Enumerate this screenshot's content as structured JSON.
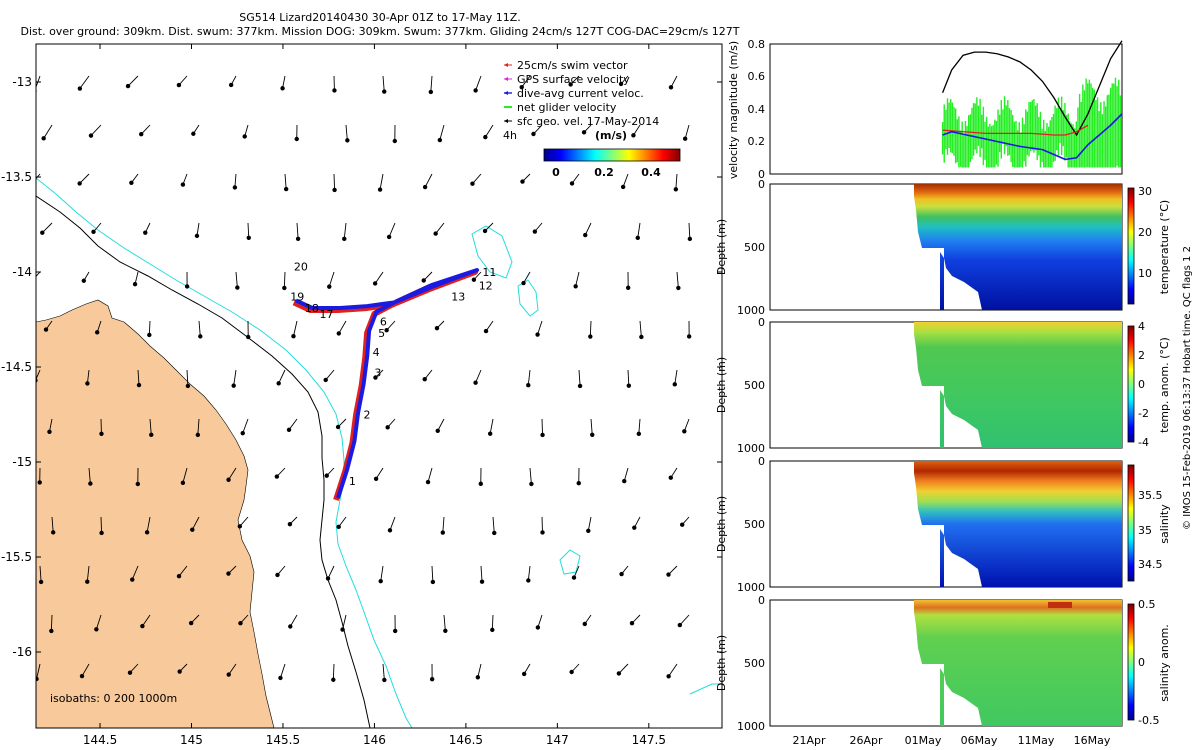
{
  "title": {
    "line1": "SG514 Lizard20140430 30-Apr 01Z to 17-May 11Z.",
    "line2": "Dist. over ground: 309km. Dist. swum: 377km. Mission DOG: 309km. Swum: 377km. Gliding 24cm/s 127T COG-DAC=29cm/s 127T"
  },
  "credit": "© IMOS 15-Feb-2019 06:13:37 Hobart time. QC flags 1  2",
  "colors": {
    "land": "#f8c99b",
    "isobath200": "#22dddd",
    "track_red": "#e02020",
    "track_blue": "#1a1ae0",
    "net_green": "#22ee22",
    "gps_magenta": "#e020e0",
    "line_black": "#000000",
    "frame": "#000000"
  },
  "chart_data": [
    {
      "type": "map",
      "name": "track-map",
      "xlim": [
        144.15,
        147.9
      ],
      "ylim": [
        -16.4,
        -12.8
      ],
      "xticks": [
        144.5,
        145,
        145.5,
        146,
        146.5,
        147,
        147.5
      ],
      "yticks": [
        -13,
        -13.5,
        -14,
        -14.5,
        -15,
        -15.5,
        -16
      ],
      "xtick_labels": [
        "144.5",
        "145",
        "145.5",
        "146",
        "146.5",
        "147",
        "147.5"
      ],
      "ytick_labels": [
        "-13",
        "-13.5",
        "-14",
        "-14.5",
        "-15",
        "-15.5",
        "-16"
      ],
      "legend": {
        "position": "top-right",
        "items": [
          {
            "label": "25cm/s swim vector",
            "color": "#e02020"
          },
          {
            "label": "GPS surface velocity",
            "color": "#e020e0"
          },
          {
            "label": "dive-avg current veloc.",
            "color": "#1a1ae0"
          },
          {
            "label": "net glider velocity",
            "color": "#22ee22"
          },
          {
            "label": "sfc geo. vel. 17-May-2014",
            "color": "#000000"
          }
        ],
        "age_label": "4h"
      },
      "colorbar": {
        "title": "(m/s)",
        "ticks": [
          "0",
          "0.2",
          "0.4"
        ],
        "range": [
          0,
          0.5
        ]
      },
      "isobaths_label": "isobaths: 0   200  1000m",
      "track": {
        "points": [
          [
            145.79,
            -15.2
          ],
          [
            145.84,
            -15.05
          ],
          [
            145.88,
            -14.9
          ],
          [
            145.9,
            -14.75
          ],
          [
            145.93,
            -14.6
          ],
          [
            145.95,
            -14.45
          ],
          [
            145.96,
            -14.32
          ],
          [
            146.0,
            -14.22
          ],
          [
            146.12,
            -14.16
          ],
          [
            146.3,
            -14.08
          ],
          [
            146.55,
            -14.0
          ],
          [
            146.3,
            -14.09
          ],
          [
            146.1,
            -14.17
          ],
          [
            145.95,
            -14.19
          ],
          [
            145.8,
            -14.2
          ],
          [
            145.65,
            -14.2
          ],
          [
            145.56,
            -14.16
          ]
        ],
        "day_labels": [
          {
            "label": "1",
            "lon": 145.86,
            "lat": -15.1
          },
          {
            "label": "2",
            "lon": 145.94,
            "lat": -14.75
          },
          {
            "label": "3",
            "lon": 146.0,
            "lat": -14.53
          },
          {
            "label": "4",
            "lon": 145.99,
            "lat": -14.42
          },
          {
            "label": "5",
            "lon": 146.02,
            "lat": -14.32
          },
          {
            "label": "6",
            "lon": 146.03,
            "lat": -14.26
          },
          {
            "label": "11",
            "lon": 146.59,
            "lat": -14.0
          },
          {
            "label": "12",
            "lon": 146.57,
            "lat": -14.07
          },
          {
            "label": "13",
            "lon": 146.42,
            "lat": -14.13
          },
          {
            "label": "17",
            "lon": 145.7,
            "lat": -14.22
          },
          {
            "label": "18",
            "lon": 145.62,
            "lat": -14.19
          },
          {
            "label": "19",
            "lon": 145.54,
            "lat": -14.13
          },
          {
            "label": "20",
            "lon": 145.56,
            "lat": -13.97
          }
        ]
      }
    },
    {
      "type": "line",
      "name": "velocity-panel",
      "ylabel": "velocity magnitude (m/s)",
      "ylim": [
        0,
        0.8
      ],
      "yticks": [
        "0",
        "0.2",
        "0.4",
        "0.6",
        "0.8"
      ],
      "x_days_from_16Apr": [
        0,
        31
      ],
      "series": [
        {
          "name": "swim",
          "color": "#000000",
          "x": [
            15.2,
            16,
            17,
            18,
            19,
            20,
            21,
            22,
            23,
            24,
            25,
            26,
            27,
            28,
            29,
            30,
            31
          ],
          "values": [
            0.5,
            0.64,
            0.73,
            0.75,
            0.75,
            0.74,
            0.72,
            0.69,
            0.64,
            0.57,
            0.47,
            0.35,
            0.24,
            0.37,
            0.54,
            0.71,
            0.82
          ]
        },
        {
          "name": "dive-avg current",
          "color": "#1a1ae0",
          "x": [
            15.2,
            16,
            18,
            20,
            22,
            23,
            24,
            25,
            26,
            27,
            28,
            29,
            30,
            31
          ],
          "values": [
            0.24,
            0.26,
            0.23,
            0.2,
            0.17,
            0.16,
            0.15,
            0.12,
            0.09,
            0.1,
            0.18,
            0.24,
            0.3,
            0.37
          ]
        },
        {
          "name": "swim vector",
          "color": "#e02020",
          "x": [
            15.2,
            17,
            19,
            21,
            23,
            25,
            26,
            27,
            28
          ],
          "values": [
            0.27,
            0.26,
            0.25,
            0.25,
            0.25,
            0.24,
            0.24,
            0.26,
            0.3
          ]
        }
      ]
    },
    {
      "type": "heatmap",
      "name": "temperature-panel",
      "ylabel": "Depth (m)",
      "ylim": [
        0,
        1000
      ],
      "yticks": [
        "0",
        "500",
        "1000"
      ],
      "colorbar_label": "temperature (°C)",
      "colorbar_ticks": [
        "30",
        "20",
        "10"
      ]
    },
    {
      "type": "heatmap",
      "name": "temp-anomaly-panel",
      "ylabel": "Depth (m)",
      "ylim": [
        0,
        1000
      ],
      "yticks": [
        "0",
        "500",
        "1000"
      ],
      "colorbar_label": "temp. anom. (°C)",
      "colorbar_ticks": [
        "4",
        "2",
        "0",
        "-2",
        "-4"
      ]
    },
    {
      "type": "heatmap",
      "name": "salinity-panel",
      "ylabel": "Depth (m)",
      "ylim": [
        0,
        1000
      ],
      "yticks": [
        "0",
        "500",
        "1000"
      ],
      "colorbar_label": "salinity",
      "colorbar_ticks": [
        "35.5",
        "35",
        "34.5"
      ]
    },
    {
      "type": "heatmap",
      "name": "salinity-anomaly-panel",
      "ylabel": "Depth (m)",
      "ylim": [
        0,
        1000
      ],
      "yticks": [
        "0",
        "500",
        "1000"
      ],
      "colorbar_label": "salinity anom.",
      "colorbar_ticks": [
        "0.5",
        "0",
        "-0.5"
      ],
      "xtick_labels": [
        "21Apr",
        "26Apr",
        "01May",
        "06May",
        "11May",
        "16May"
      ]
    }
  ]
}
